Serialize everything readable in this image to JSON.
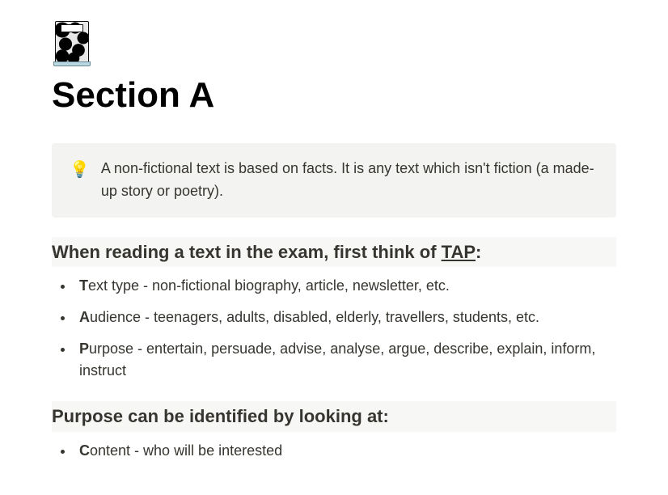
{
  "icon": {
    "name": "notebook-icon",
    "cover_pattern_bg": "#e8e8e8",
    "cover_pattern_fg": "#000000",
    "label_bg": "#ffffff",
    "spine_bg": "#b9d7e0"
  },
  "title": "Section A",
  "callout": {
    "emoji": "💡",
    "text": "A non-fictional text is based on facts. It is any text which isn't fiction (a made-up story or poetry).",
    "bg_color": "#f3f3f2"
  },
  "tap_heading": {
    "prefix": "When reading a text in the exam, first think of ",
    "underlined": "TAP",
    "suffix": ":"
  },
  "tap_items": [
    {
      "lead": "T",
      "rest": "ext type - non-fictional biography, article, newsletter, etc."
    },
    {
      "lead": "A",
      "rest": "udience - teenagers, adults, disabled, elderly, travellers, students, etc."
    },
    {
      "lead": "P",
      "rest": "urpose - entertain, persuade, advise, analyse, argue, describe, explain, inform, instruct"
    }
  ],
  "purpose_heading": "Purpose can be identified by looking at:",
  "purpose_items": [
    {
      "lead": "C",
      "rest": "ontent - who will be interested"
    }
  ],
  "colors": {
    "text": "#37352f",
    "bg": "#ffffff",
    "heading_bg": "#f7f7f6"
  }
}
